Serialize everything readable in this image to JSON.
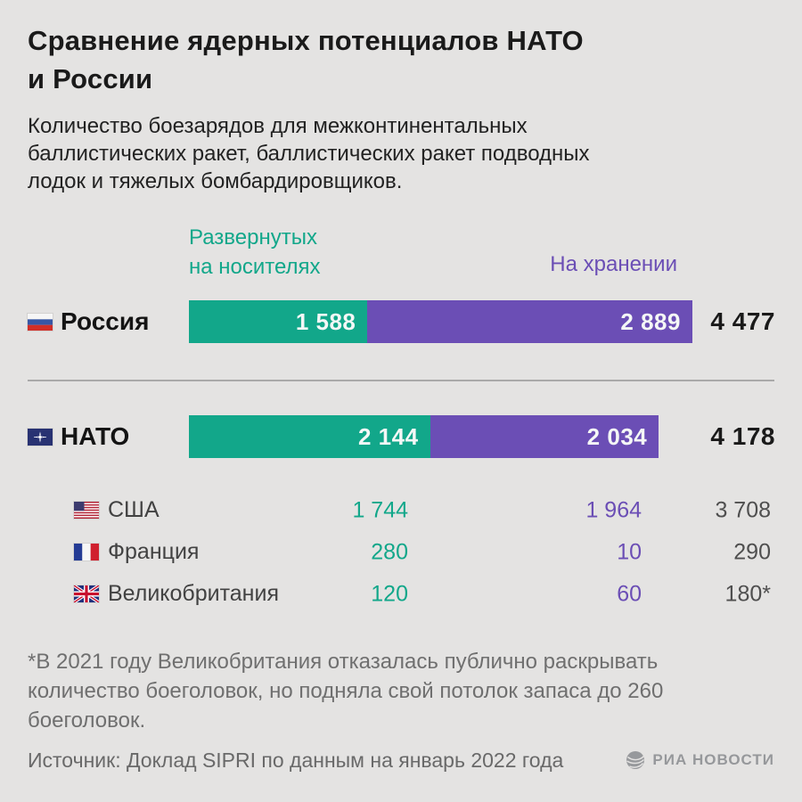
{
  "title": {
    "line1": "Сравнение ядерных потенциалов НАТО",
    "line2": "и России"
  },
  "subtitle": "Количество боезарядов для межконтинентальных баллистических ракет, баллистических ракет подводных лодок и тяжелых бомбардировщиков.",
  "legend": {
    "deployed": "Развернутых на носителях",
    "stored": "На хранении"
  },
  "chart_data": {
    "type": "bar",
    "stacked": true,
    "orientation": "horizontal",
    "axis_max": 4477,
    "series": [
      {
        "name": "Развернутых на носителях",
        "color": "#12a78a"
      },
      {
        "name": "На хранении",
        "color": "#6b4eb5"
      }
    ],
    "rows": [
      {
        "label": "Россия",
        "flag": "russia-flag",
        "deployed": 1588,
        "stored": 2889,
        "total": 4477,
        "deployed_label": "1 588",
        "stored_label": "2 889",
        "total_label": "4 477"
      },
      {
        "label": "НАТО",
        "flag": "nato-flag",
        "deployed": 2144,
        "stored": 2034,
        "total": 4178,
        "deployed_label": "2 144",
        "stored_label": "2 034",
        "total_label": "4 178"
      }
    ],
    "members": [
      {
        "label": "США",
        "flag": "usa-flag",
        "deployed": 1744,
        "stored": 1964,
        "total": 3708,
        "deployed_label": "1 744",
        "stored_label": "1 964",
        "total_label": "3 708"
      },
      {
        "label": "Франция",
        "flag": "france-flag",
        "deployed": 280,
        "stored": 10,
        "total": 290,
        "deployed_label": "280",
        "stored_label": "10",
        "total_label": "290"
      },
      {
        "label": "Великобритания",
        "flag": "uk-flag",
        "deployed": 120,
        "stored": 60,
        "total": 180,
        "deployed_label": "120",
        "stored_label": "60",
        "total_label": "180*"
      }
    ]
  },
  "colors": {
    "background": "#e4e3e2",
    "deployed_green": "#12a78a",
    "stored_purple": "#6b4eb5",
    "ink": "#1a1a1a"
  },
  "footnote": "*В 2021 году Великобритания отказалась публично раскрывать количество боеголовок, но подняла свой потолок запаса до 260 боеголовок.",
  "source": "Источник: Доклад SIPRI по данным на январь 2022 года",
  "brand": "РИА НОВОСТИ"
}
